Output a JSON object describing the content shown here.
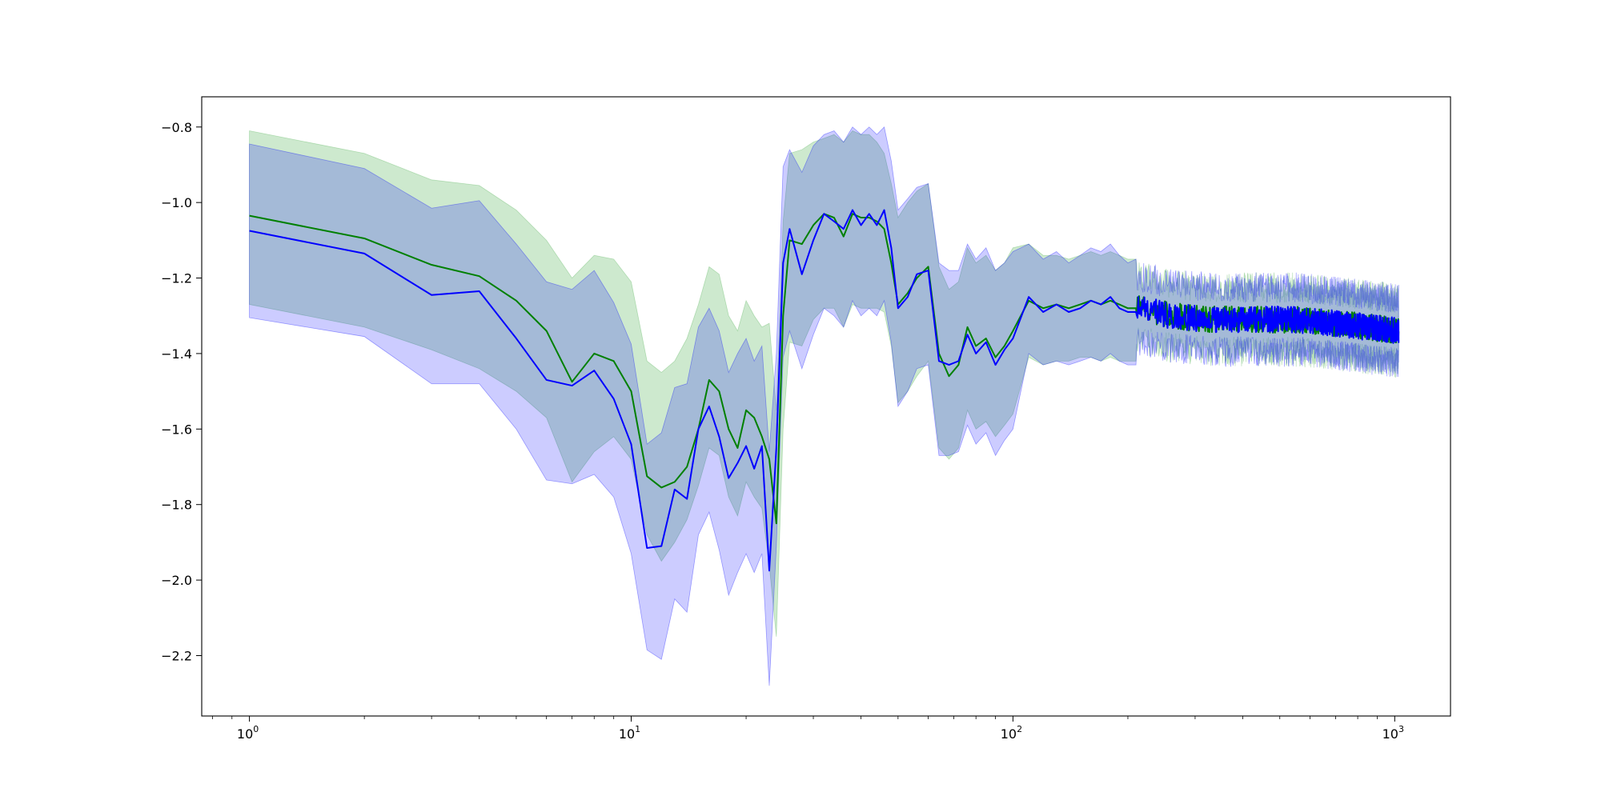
{
  "chart_data": {
    "type": "line",
    "title": "",
    "xlabel": "",
    "ylabel": "",
    "x_scale": "log",
    "xlim": [
      0.75,
      1400
    ],
    "ylim": [
      -2.36,
      -0.72
    ],
    "grid": false,
    "legend": "none",
    "x_ticks": [
      {
        "value": 1,
        "base": "10",
        "exp": "0"
      },
      {
        "value": 10,
        "base": "10",
        "exp": "1"
      },
      {
        "value": 100,
        "base": "10",
        "exp": "2"
      },
      {
        "value": 1000,
        "base": "10",
        "exp": "3"
      }
    ],
    "y_ticks": [
      {
        "value": -0.8,
        "label": "−0.8"
      },
      {
        "value": -1.0,
        "label": "−1.0"
      },
      {
        "value": -1.2,
        "label": "−1.2"
      },
      {
        "value": -1.4,
        "label": "−1.4"
      },
      {
        "value": -1.6,
        "label": "−1.6"
      },
      {
        "value": -1.8,
        "label": "−1.8"
      },
      {
        "value": -2.0,
        "label": "−2.0"
      },
      {
        "value": -2.2,
        "label": "−2.2"
      }
    ],
    "series": [
      {
        "color": "#008000",
        "band_color": "#4caf50",
        "band_opacity": 0.28,
        "points": [
          [
            1,
            -1.035
          ],
          [
            2,
            -1.095
          ],
          [
            3,
            -1.165
          ],
          [
            4,
            -1.195
          ],
          [
            5,
            -1.26
          ],
          [
            6,
            -1.34
          ],
          [
            7,
            -1.475
          ],
          [
            8,
            -1.4
          ],
          [
            9,
            -1.42
          ],
          [
            10,
            -1.5
          ],
          [
            11,
            -1.725
          ],
          [
            12,
            -1.755
          ],
          [
            13,
            -1.74
          ],
          [
            14,
            -1.7
          ],
          [
            15,
            -1.6
          ],
          [
            16,
            -1.47
          ],
          [
            17,
            -1.5
          ],
          [
            18,
            -1.6
          ],
          [
            19,
            -1.65
          ],
          [
            20,
            -1.55
          ],
          [
            21,
            -1.57
          ],
          [
            22,
            -1.62
          ],
          [
            23,
            -1.68
          ],
          [
            24,
            -1.85
          ],
          [
            25,
            -1.3
          ],
          [
            26,
            -1.1
          ],
          [
            28,
            -1.11
          ],
          [
            30,
            -1.06
          ],
          [
            32,
            -1.03
          ],
          [
            34,
            -1.04
          ],
          [
            36,
            -1.09
          ],
          [
            38,
            -1.03
          ],
          [
            40,
            -1.04
          ],
          [
            42,
            -1.04
          ],
          [
            44,
            -1.05
          ],
          [
            46,
            -1.07
          ],
          [
            48,
            -1.16
          ],
          [
            50,
            -1.27
          ],
          [
            53,
            -1.24
          ],
          [
            56,
            -1.2
          ],
          [
            60,
            -1.17
          ],
          [
            64,
            -1.4
          ],
          [
            68,
            -1.46
          ],
          [
            72,
            -1.43
          ],
          [
            76,
            -1.33
          ],
          [
            80,
            -1.38
          ],
          [
            85,
            -1.36
          ],
          [
            90,
            -1.41
          ],
          [
            95,
            -1.38
          ],
          [
            100,
            -1.34
          ],
          [
            110,
            -1.26
          ],
          [
            120,
            -1.28
          ],
          [
            130,
            -1.27
          ],
          [
            140,
            -1.28
          ],
          [
            150,
            -1.27
          ],
          [
            160,
            -1.26
          ],
          [
            170,
            -1.27
          ],
          [
            180,
            -1.26
          ],
          [
            190,
            -1.27
          ],
          [
            200,
            -1.28
          ],
          [
            210,
            -1.28
          ]
        ],
        "band": [
          [
            1,
            -0.81,
            -1.27
          ],
          [
            2,
            -0.87,
            -1.33
          ],
          [
            3,
            -0.94,
            -1.39
          ],
          [
            4,
            -0.955,
            -1.44
          ],
          [
            5,
            -1.02,
            -1.5
          ],
          [
            6,
            -1.1,
            -1.57
          ],
          [
            7,
            -1.2,
            -1.74
          ],
          [
            8,
            -1.14,
            -1.66
          ],
          [
            9,
            -1.15,
            -1.62
          ],
          [
            10,
            -1.21,
            -1.68
          ],
          [
            11,
            -1.42,
            -1.88
          ],
          [
            12,
            -1.45,
            -1.95
          ],
          [
            13,
            -1.42,
            -1.9
          ],
          [
            14,
            -1.36,
            -1.84
          ],
          [
            15,
            -1.27,
            -1.75
          ],
          [
            16,
            -1.17,
            -1.65
          ],
          [
            17,
            -1.19,
            -1.67
          ],
          [
            18,
            -1.3,
            -1.78
          ],
          [
            19,
            -1.34,
            -1.83
          ],
          [
            20,
            -1.26,
            -1.74
          ],
          [
            21,
            -1.3,
            -1.78
          ],
          [
            22,
            -1.33,
            -1.81
          ],
          [
            23,
            -1.32,
            -1.96
          ],
          [
            24,
            -1.55,
            -2.15
          ],
          [
            25,
            -1.05,
            -1.6
          ],
          [
            26,
            -0.87,
            -1.37
          ],
          [
            28,
            -0.86,
            -1.38
          ],
          [
            30,
            -0.84,
            -1.31
          ],
          [
            32,
            -0.83,
            -1.28
          ],
          [
            34,
            -0.82,
            -1.28
          ],
          [
            36,
            -0.84,
            -1.33
          ],
          [
            38,
            -0.81,
            -1.27
          ],
          [
            40,
            -0.82,
            -1.28
          ],
          [
            42,
            -0.82,
            -1.28
          ],
          [
            44,
            -0.84,
            -1.28
          ],
          [
            46,
            -0.87,
            -1.29
          ],
          [
            48,
            -0.95,
            -1.38
          ],
          [
            50,
            -1.04,
            -1.53
          ],
          [
            53,
            -1.0,
            -1.5
          ],
          [
            56,
            -0.97,
            -1.46
          ],
          [
            60,
            -0.95,
            -1.42
          ],
          [
            64,
            -1.17,
            -1.65
          ],
          [
            68,
            -1.23,
            -1.68
          ],
          [
            72,
            -1.21,
            -1.65
          ],
          [
            76,
            -1.12,
            -1.55
          ],
          [
            80,
            -1.16,
            -1.6
          ],
          [
            85,
            -1.14,
            -1.58
          ],
          [
            90,
            -1.18,
            -1.62
          ],
          [
            95,
            -1.16,
            -1.59
          ],
          [
            100,
            -1.12,
            -1.56
          ],
          [
            110,
            -1.11,
            -1.41
          ],
          [
            120,
            -1.14,
            -1.43
          ],
          [
            130,
            -1.14,
            -1.42
          ],
          [
            140,
            -1.15,
            -1.42
          ],
          [
            150,
            -1.14,
            -1.41
          ],
          [
            160,
            -1.13,
            -1.41
          ],
          [
            170,
            -1.14,
            -1.42
          ],
          [
            180,
            -1.13,
            -1.41
          ],
          [
            190,
            -1.14,
            -1.42
          ],
          [
            200,
            -1.15,
            -1.42
          ],
          [
            210,
            -1.15,
            -1.42
          ]
        ]
      },
      {
        "color": "#0000ff",
        "band_color": "#0000ff",
        "band_opacity": 0.2,
        "points": [
          [
            1,
            -1.075
          ],
          [
            2,
            -1.135
          ],
          [
            3,
            -1.245
          ],
          [
            4,
            -1.235
          ],
          [
            5,
            -1.36
          ],
          [
            6,
            -1.47
          ],
          [
            7,
            -1.485
          ],
          [
            8,
            -1.445
          ],
          [
            9,
            -1.52
          ],
          [
            10,
            -1.64
          ],
          [
            11,
            -1.915
          ],
          [
            12,
            -1.91
          ],
          [
            13,
            -1.76
          ],
          [
            14,
            -1.785
          ],
          [
            15,
            -1.6
          ],
          [
            16,
            -1.54
          ],
          [
            17,
            -1.62
          ],
          [
            18,
            -1.73
          ],
          [
            19,
            -1.69
          ],
          [
            20,
            -1.645
          ],
          [
            21,
            -1.705
          ],
          [
            22,
            -1.645
          ],
          [
            23,
            -1.975
          ],
          [
            24,
            -1.65
          ],
          [
            25,
            -1.16
          ],
          [
            26,
            -1.07
          ],
          [
            28,
            -1.19
          ],
          [
            30,
            -1.1
          ],
          [
            32,
            -1.03
          ],
          [
            34,
            -1.05
          ],
          [
            36,
            -1.07
          ],
          [
            38,
            -1.02
          ],
          [
            40,
            -1.06
          ],
          [
            42,
            -1.03
          ],
          [
            44,
            -1.06
          ],
          [
            46,
            -1.02
          ],
          [
            48,
            -1.12
          ],
          [
            50,
            -1.28
          ],
          [
            53,
            -1.25
          ],
          [
            56,
            -1.19
          ],
          [
            60,
            -1.18
          ],
          [
            64,
            -1.42
          ],
          [
            68,
            -1.43
          ],
          [
            72,
            -1.42
          ],
          [
            76,
            -1.35
          ],
          [
            80,
            -1.4
          ],
          [
            85,
            -1.37
          ],
          [
            90,
            -1.43
          ],
          [
            95,
            -1.39
          ],
          [
            100,
            -1.36
          ],
          [
            110,
            -1.25
          ],
          [
            120,
            -1.29
          ],
          [
            130,
            -1.27
          ],
          [
            140,
            -1.29
          ],
          [
            150,
            -1.28
          ],
          [
            160,
            -1.26
          ],
          [
            170,
            -1.27
          ],
          [
            180,
            -1.25
          ],
          [
            190,
            -1.28
          ],
          [
            200,
            -1.29
          ],
          [
            210,
            -1.29
          ]
        ],
        "band": [
          [
            1,
            -0.845,
            -1.305
          ],
          [
            2,
            -0.91,
            -1.355
          ],
          [
            3,
            -1.015,
            -1.48
          ],
          [
            4,
            -0.995,
            -1.48
          ],
          [
            5,
            -1.11,
            -1.6
          ],
          [
            6,
            -1.21,
            -1.735
          ],
          [
            7,
            -1.23,
            -1.745
          ],
          [
            8,
            -1.18,
            -1.72
          ],
          [
            9,
            -1.265,
            -1.78
          ],
          [
            10,
            -1.375,
            -1.93
          ],
          [
            11,
            -1.64,
            -2.185
          ],
          [
            12,
            -1.61,
            -2.21
          ],
          [
            13,
            -1.49,
            -2.05
          ],
          [
            14,
            -1.48,
            -2.085
          ],
          [
            15,
            -1.33,
            -1.88
          ],
          [
            16,
            -1.28,
            -1.82
          ],
          [
            17,
            -1.34,
            -1.92
          ],
          [
            18,
            -1.45,
            -2.04
          ],
          [
            19,
            -1.4,
            -1.98
          ],
          [
            20,
            -1.36,
            -1.93
          ],
          [
            21,
            -1.42,
            -1.98
          ],
          [
            22,
            -1.38,
            -1.93
          ],
          [
            23,
            -1.66,
            -2.28
          ],
          [
            24,
            -1.4,
            -1.91
          ],
          [
            25,
            -0.905,
            -1.41
          ],
          [
            26,
            -0.86,
            -1.34
          ],
          [
            28,
            -0.92,
            -1.44
          ],
          [
            30,
            -0.85,
            -1.35
          ],
          [
            32,
            -0.82,
            -1.28
          ],
          [
            34,
            -0.81,
            -1.3
          ],
          [
            36,
            -0.84,
            -1.33
          ],
          [
            38,
            -0.8,
            -1.26
          ],
          [
            40,
            -0.82,
            -1.3
          ],
          [
            42,
            -0.8,
            -1.28
          ],
          [
            44,
            -0.82,
            -1.3
          ],
          [
            46,
            -0.8,
            -1.26
          ],
          [
            48,
            -0.89,
            -1.37
          ],
          [
            50,
            -1.02,
            -1.54
          ],
          [
            53,
            -0.99,
            -1.5
          ],
          [
            56,
            -0.96,
            -1.44
          ],
          [
            60,
            -0.95,
            -1.43
          ],
          [
            64,
            -1.16,
            -1.67
          ],
          [
            68,
            -1.18,
            -1.67
          ],
          [
            72,
            -1.18,
            -1.66
          ],
          [
            76,
            -1.11,
            -1.59
          ],
          [
            80,
            -1.15,
            -1.64
          ],
          [
            85,
            -1.12,
            -1.61
          ],
          [
            90,
            -1.18,
            -1.67
          ],
          [
            95,
            -1.16,
            -1.63
          ],
          [
            100,
            -1.13,
            -1.6
          ],
          [
            110,
            -1.11,
            -1.4
          ],
          [
            120,
            -1.15,
            -1.43
          ],
          [
            130,
            -1.13,
            -1.42
          ],
          [
            140,
            -1.16,
            -1.43
          ],
          [
            150,
            -1.14,
            -1.42
          ],
          [
            160,
            -1.12,
            -1.41
          ],
          [
            170,
            -1.13,
            -1.42
          ],
          [
            180,
            -1.11,
            -1.4
          ],
          [
            190,
            -1.14,
            -1.42
          ],
          [
            200,
            -1.16,
            -1.43
          ],
          [
            210,
            -1.15,
            -1.43
          ]
        ]
      }
    ],
    "tail": {
      "x_start": 210,
      "x_end": 1024,
      "center": [
        [
          210,
          -1.28
        ],
        [
          260,
          -1.3
        ],
        [
          330,
          -1.31
        ],
        [
          420,
          -1.31
        ],
        [
          550,
          -1.31
        ],
        [
          700,
          -1.32
        ],
        [
          850,
          -1.33
        ],
        [
          1024,
          -1.34
        ]
      ],
      "line_amplitude": 0.035,
      "band_half_width": 0.085,
      "band_jitter": 0.05
    }
  }
}
